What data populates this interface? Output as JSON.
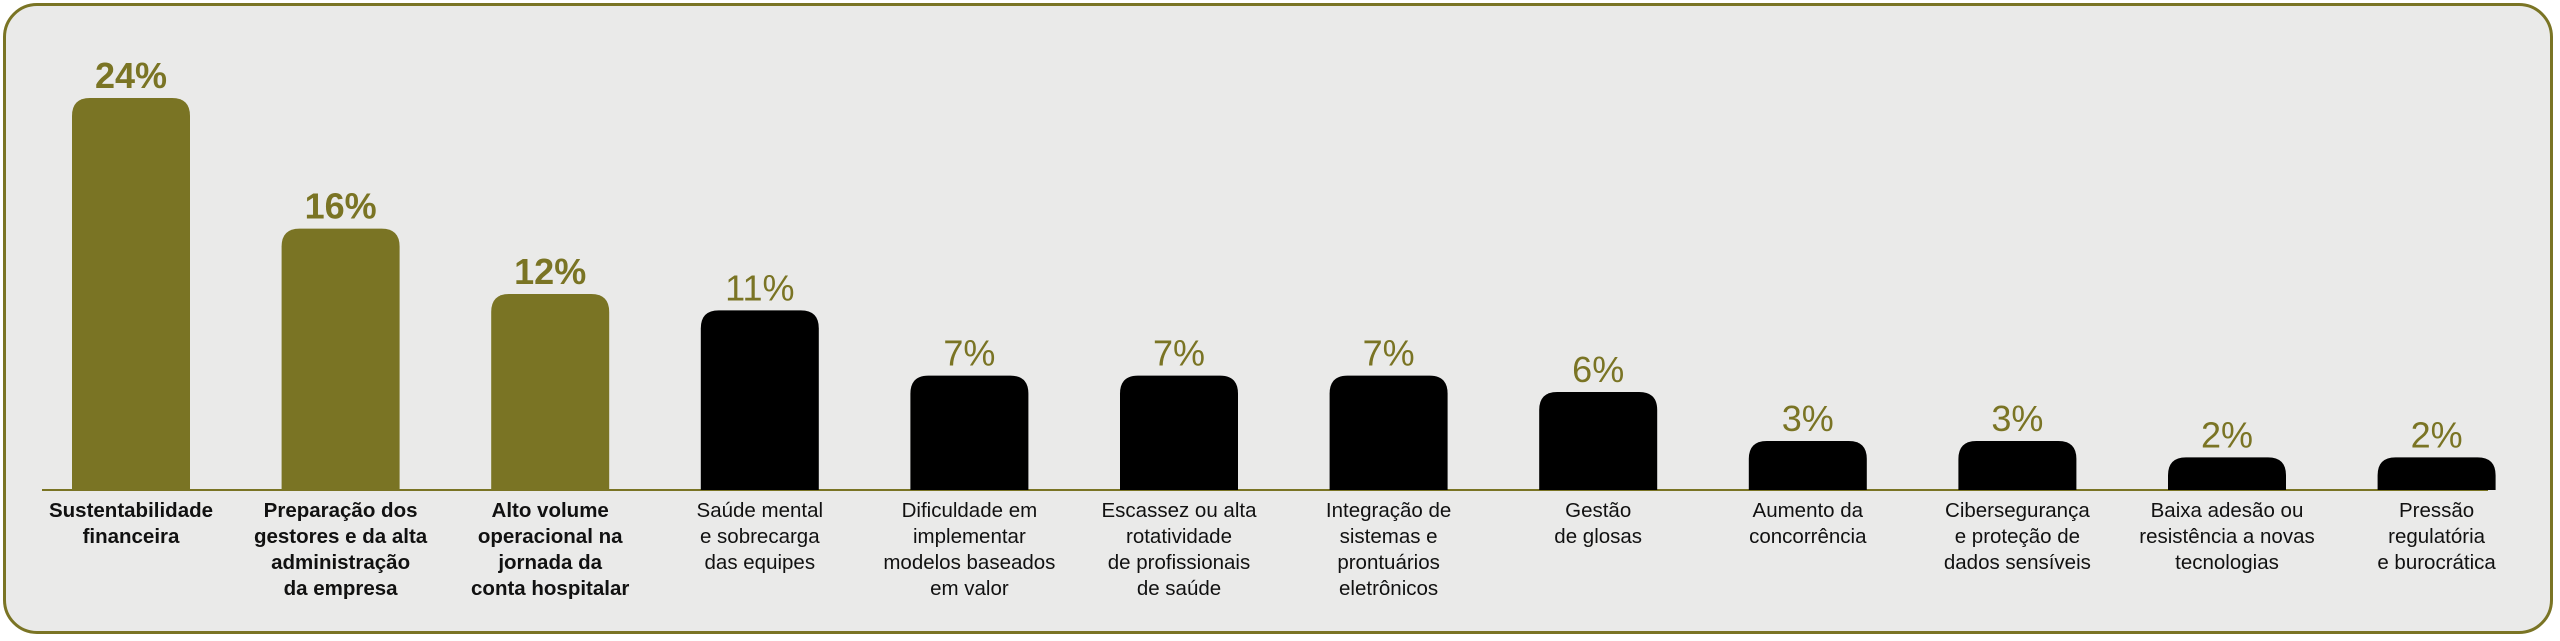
{
  "colors": {
    "highlight": "#7a7424",
    "normal": "#000000",
    "background": "#eaeae9",
    "border": "#7a7424"
  },
  "chart_data": {
    "type": "bar",
    "categories": [
      "Sustentabilidade\nfinanceira",
      "Preparação dos\ngestores e da alta\nadministração\nda empresa",
      "Alto volume\noperacional na\njornada da\nconta hospitalar",
      "Saúde mental\ne sobrecarga\ndas equipes",
      "Dificuldade em\nimplementar\nmodelos baseados\nem valor",
      "Escassez ou alta\nrotatividade\nde profissionais\nde saúde",
      "Integração de\nsistemas e\nprontuários\neletrônicos",
      "Gestão\nde glosas",
      "Aumento da\nconcorrência",
      "Cibersegurança\ne proteção de\ndados sensíveis",
      "Baixa adesão ou\nresistência a novas\ntecnologias",
      "Pressão\nregulatória\ne burocrática"
    ],
    "values": [
      24,
      16,
      12,
      11,
      7,
      7,
      7,
      6,
      3,
      3,
      2,
      2
    ],
    "value_labels": [
      "24%",
      "16%",
      "12%",
      "11%",
      "7%",
      "7%",
      "7%",
      "6%",
      "3%",
      "3%",
      "2%",
      "2%"
    ],
    "highlighted": [
      true,
      true,
      true,
      false,
      false,
      false,
      false,
      false,
      false,
      false,
      false,
      false
    ],
    "ylim": [
      0,
      24
    ],
    "grid": false,
    "legend": "none"
  }
}
